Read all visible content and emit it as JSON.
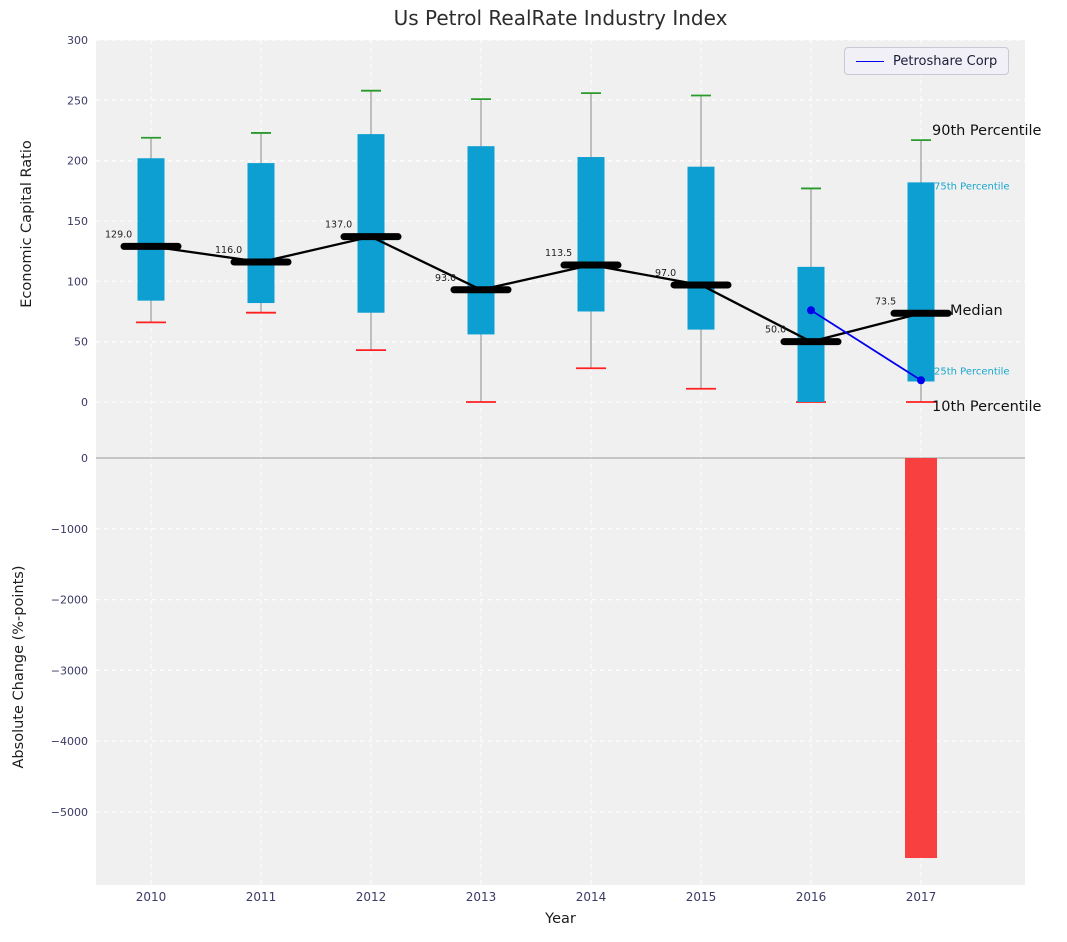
{
  "title": "Us Petrol RealRate Industry Index",
  "legend": {
    "label": "Petroshare Corp"
  },
  "chart_data": {
    "type": "boxplot+line+bar",
    "top": {
      "ylabel": "Economic Capital Ratio",
      "ylim": [
        -40,
        300
      ],
      "ytick_labels": [
        "0",
        "50",
        "100",
        "150",
        "200",
        "250",
        "300"
      ],
      "ytick_values": [
        0,
        50,
        100,
        150,
        200,
        250,
        300
      ],
      "years": [
        2010,
        2011,
        2012,
        2013,
        2014,
        2015,
        2016,
        2017
      ],
      "p10": [
        66,
        74,
        43,
        0,
        28,
        11,
        0,
        0
      ],
      "p25": [
        84,
        82,
        74,
        56,
        75,
        60,
        0,
        17
      ],
      "median": [
        129.0,
        116.0,
        137.0,
        93.0,
        113.5,
        97.0,
        50.0,
        73.5
      ],
      "p75": [
        202,
        198,
        222,
        212,
        203,
        195,
        112,
        182
      ],
      "p90": [
        219,
        223,
        258,
        251,
        256,
        254,
        177,
        217
      ],
      "median_labels": [
        "129.0",
        "116.0",
        "137.0",
        "93.0",
        "113.5",
        "97.0",
        "50.0",
        "73.5"
      ],
      "series_line": {
        "name": "Petroshare Corp",
        "years": [
          2016,
          2017
        ],
        "values": [
          76,
          18
        ]
      },
      "annotations": [
        {
          "text": "90th Percentile",
          "value": 217,
          "size": "big",
          "x": 932,
          "dy": -9
        },
        {
          "text": "75th Percentile",
          "value": 182,
          "size": "small",
          "x": 934,
          "dy": 5
        },
        {
          "text": "Median",
          "value": 73.5,
          "size": "big",
          "x": 950,
          "dy": -2
        },
        {
          "text": "25th Percentile",
          "value": 17,
          "size": "small",
          "x": 934,
          "dy": -9
        },
        {
          "text": "10th Percentile",
          "value": 0,
          "size": "big",
          "x": 932,
          "dy": 5
        }
      ]
    },
    "bottom": {
      "ylabel": "Absolute Change (%-points)",
      "xlabel": "Year",
      "ytick_labels": [
        "0",
        "−1000",
        "−2000",
        "−3000",
        "−4000",
        "−5000"
      ],
      "ytick_values": [
        0,
        -1000,
        -2000,
        -3000,
        -4000,
        -5000
      ],
      "bar": {
        "year": 2017,
        "value": -5650
      }
    }
  },
  "colors": {
    "box": "#0d9fd1",
    "cap_top": "#2a9a2a",
    "cap_bottom": "#ff2020",
    "whisker": "#9b9b9b",
    "median_marker": "#000000",
    "median_line": "#000000",
    "company_line": "#0000ee",
    "neg_bar": "#f94040",
    "plot_bg": "#f0f0f1",
    "grid": "#ffffff",
    "zero_line": "#aaaaaa",
    "tick": "#3a3a66",
    "annotation_big": "#111111",
    "annotation_small": "#18a6cc",
    "median_label": "#222222"
  }
}
